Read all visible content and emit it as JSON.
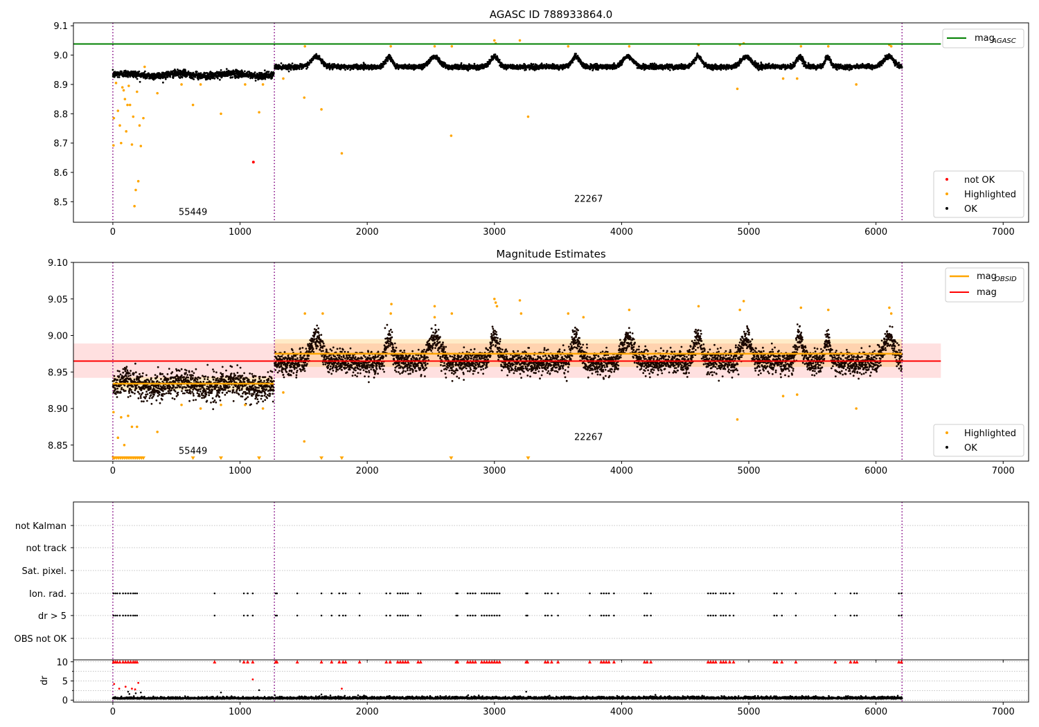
{
  "chart_data": [
    {
      "type": "scatter",
      "title": "AGASC ID 788933864.0",
      "xlabel": "",
      "ylabel": "",
      "xlim": [
        -310,
        7200
      ],
      "ylim": [
        8.43,
        9.11
      ],
      "x_ticks": [
        0,
        1000,
        2000,
        3000,
        4000,
        5000,
        6000,
        7000
      ],
      "y_ticks": [
        8.5,
        8.6,
        8.7,
        8.8,
        8.9,
        9.0,
        9.1
      ],
      "y_tick_labels": [
        "8.5",
        "8.6",
        "8.7",
        "8.8",
        "8.9",
        "9.0",
        "9.1"
      ],
      "grid": false,
      "obsid_boundaries": [
        0,
        1270,
        6205
      ],
      "obsid_labels": [
        {
          "text": "55449",
          "x": 630,
          "y": 8.455
        },
        {
          "text": "22267",
          "x": 3740,
          "y": 8.5
        }
      ],
      "lines": [
        {
          "name": "mag_AGASC",
          "label_main": "mag",
          "label_sub": "AGASC",
          "color": "#008000",
          "y": 9.038,
          "x_range": [
            -310,
            6510
          ]
        }
      ],
      "segments": [
        {
          "x0": 0,
          "x1": 1265,
          "base": 8.933,
          "noise": 0.006,
          "waves": [
            {
              "amp": 0.004,
              "period": 420
            }
          ]
        },
        {
          "x0": 1272,
          "x1": 6205,
          "base": 8.96,
          "noise": 0.004,
          "bumps": [
            [
              1600,
              40
            ],
            [
              2170,
              25
            ],
            [
              2530,
              40
            ],
            [
              3000,
              30
            ],
            [
              3640,
              30
            ],
            [
              4050,
              40
            ],
            [
              4600,
              30
            ],
            [
              4980,
              40
            ],
            [
              5400,
              25
            ],
            [
              5620,
              20
            ],
            [
              6100,
              40
            ]
          ],
          "bump_amp": 0.035
        }
      ],
      "series": [
        {
          "name": "not OK",
          "color": "#ff0000",
          "points": [
            [
              1105,
              8.635
            ]
          ]
        },
        {
          "name": "Highlighted",
          "color": "#ffa500",
          "points": [
            [
              5,
              8.692
            ],
            [
              8,
              8.785
            ],
            [
              25,
              8.905
            ],
            [
              40,
              8.81
            ],
            [
              55,
              8.76
            ],
            [
              65,
              8.7
            ],
            [
              75,
              8.89
            ],
            [
              85,
              8.88
            ],
            [
              95,
              8.85
            ],
            [
              105,
              8.74
            ],
            [
              115,
              8.83
            ],
            [
              125,
              8.895
            ],
            [
              135,
              8.83
            ],
            [
              150,
              8.695
            ],
            [
              160,
              8.79
            ],
            [
              170,
              8.485
            ],
            [
              180,
              8.54
            ],
            [
              190,
              8.875
            ],
            [
              200,
              8.57
            ],
            [
              210,
              8.76
            ],
            [
              220,
              8.69
            ],
            [
              240,
              8.785
            ],
            [
              250,
              8.96
            ],
            [
              350,
              8.87
            ],
            [
              540,
              8.9
            ],
            [
              630,
              8.83
            ],
            [
              690,
              8.9
            ],
            [
              850,
              8.8
            ],
            [
              1040,
              8.9
            ],
            [
              1150,
              8.805
            ],
            [
              1180,
              8.9
            ],
            [
              1340,
              8.92
            ],
            [
              1505,
              8.855
            ],
            [
              1510,
              9.03
            ],
            [
              1640,
              8.815
            ],
            [
              1800,
              8.665
            ],
            [
              2185,
              9.03
            ],
            [
              2530,
              9.03
            ],
            [
              2660,
              8.725
            ],
            [
              2665,
              9.03
            ],
            [
              3000,
              9.05
            ],
            [
              3010,
              9.04
            ],
            [
              3200,
              9.05
            ],
            [
              3265,
              8.79
            ],
            [
              3580,
              9.03
            ],
            [
              4060,
              9.03
            ],
            [
              4605,
              9.035
            ],
            [
              4910,
              8.885
            ],
            [
              4930,
              9.035
            ],
            [
              4960,
              9.04
            ],
            [
              5270,
              8.92
            ],
            [
              5380,
              8.92
            ],
            [
              5410,
              9.03
            ],
            [
              5625,
              9.03
            ],
            [
              5845,
              8.9
            ],
            [
              6105,
              9.035
            ],
            [
              6120,
              9.03
            ]
          ]
        },
        {
          "name": "OK",
          "color": "#000000",
          "points": []
        }
      ],
      "legends": [
        {
          "position": "upper right",
          "entries": [
            "mag_AGASC"
          ]
        },
        {
          "position": "lower right",
          "entries": [
            "not OK",
            "Highlighted",
            "OK"
          ]
        }
      ]
    },
    {
      "type": "scatter",
      "title": "Magnitude Estimates",
      "xlabel": "",
      "ylabel": "",
      "xlim": [
        -310,
        7200
      ],
      "ylim": [
        8.828,
        9.1
      ],
      "x_ticks": [
        0,
        1000,
        2000,
        3000,
        4000,
        5000,
        6000,
        7000
      ],
      "y_ticks": [
        8.85,
        8.9,
        8.95,
        9.0,
        9.05,
        9.1
      ],
      "y_tick_labels": [
        "8.85",
        "8.90",
        "8.95",
        "9.00",
        "9.05",
        "9.10"
      ],
      "grid": false,
      "obsid_boundaries": [
        0,
        1270,
        6205
      ],
      "obsid_labels": [
        {
          "text": "55449",
          "x": 630,
          "y": 8.838
        },
        {
          "text": "22267",
          "x": 3740,
          "y": 8.857
        }
      ],
      "lines": [
        {
          "name": "mag_OBSID",
          "label_main": "mag",
          "label_sub": "OBSID",
          "color": "#ffa500",
          "pieces": [
            {
              "x": [
                0,
                1265
              ],
              "y": 8.934,
              "band": [
                8.925,
                8.943
              ]
            },
            {
              "x": [
                1272,
                6205
              ],
              "y": 8.975,
              "band": [
                8.957,
                8.995
              ]
            }
          ]
        },
        {
          "name": "mag",
          "label_main": "mag",
          "color": "#ff0000",
          "y": 8.965,
          "band": [
            8.942,
            8.989
          ],
          "x_range": [
            -310,
            6510
          ]
        }
      ],
      "segments": [
        {
          "x0": 0,
          "x1": 1265,
          "base": 8.932,
          "noise": 0.009,
          "waves": [
            {
              "amp": 0.004,
              "period": 420
            }
          ]
        },
        {
          "x0": 1272,
          "x1": 6205,
          "base": 8.963,
          "noise": 0.008,
          "bumps": [
            [
              1600,
              40
            ],
            [
              2170,
              25
            ],
            [
              2530,
              40
            ],
            [
              3000,
              30
            ],
            [
              3640,
              30
            ],
            [
              4050,
              40
            ],
            [
              4600,
              30
            ],
            [
              4980,
              40
            ],
            [
              5400,
              25
            ],
            [
              5620,
              20
            ],
            [
              6100,
              40
            ]
          ],
          "bump_amp": 0.035
        }
      ],
      "series": [
        {
          "name": "Highlighted",
          "color": "#ffa500",
          "points": [
            [
              5,
              8.895
            ],
            [
              40,
              8.86
            ],
            [
              65,
              8.888
            ],
            [
              90,
              8.85
            ],
            [
              120,
              8.89
            ],
            [
              150,
              8.875
            ],
            [
              190,
              8.875
            ],
            [
              350,
              8.868
            ],
            [
              540,
              8.905
            ],
            [
              690,
              8.9
            ],
            [
              850,
              8.905
            ],
            [
              1040,
              8.905
            ],
            [
              1180,
              8.9
            ],
            [
              1340,
              8.922
            ],
            [
              1505,
              8.855
            ],
            [
              1510,
              9.03
            ],
            [
              1650,
              9.03
            ],
            [
              2185,
              9.03
            ],
            [
              2190,
              9.043
            ],
            [
              2530,
              9.04
            ],
            [
              2530,
              9.025
            ],
            [
              2665,
              9.03
            ],
            [
              3000,
              9.05
            ],
            [
              3010,
              9.045
            ],
            [
              3020,
              9.04
            ],
            [
              3200,
              9.048
            ],
            [
              3210,
              9.03
            ],
            [
              3580,
              9.03
            ],
            [
              3700,
              9.025
            ],
            [
              4060,
              9.035
            ],
            [
              4605,
              9.04
            ],
            [
              4910,
              8.885
            ],
            [
              4930,
              9.035
            ],
            [
              4960,
              9.047
            ],
            [
              5270,
              8.917
            ],
            [
              5380,
              8.919
            ],
            [
              5410,
              9.038
            ],
            [
              5625,
              9.035
            ],
            [
              5845,
              8.9
            ],
            [
              6105,
              9.038
            ],
            [
              6120,
              9.03
            ]
          ]
        },
        {
          "name": "OK",
          "color": "#000000",
          "points": []
        }
      ],
      "out_of_range_markers": {
        "color": "#ffa500",
        "y": 8.832,
        "x": [
          5,
          15,
          30,
          45,
          60,
          75,
          90,
          105,
          120,
          135,
          150,
          165,
          180,
          195,
          210,
          225,
          240,
          630,
          850,
          1150,
          1640,
          1800,
          2660,
          3265
        ]
      },
      "legends": [
        {
          "position": "upper right",
          "entries": [
            "mag_OBSID",
            "mag"
          ]
        },
        {
          "position": "lower right",
          "entries": [
            "Highlighted",
            "OK"
          ]
        }
      ]
    },
    {
      "type": "scatter",
      "title": "",
      "xlim": [
        -310,
        7200
      ],
      "categories": [
        "not Kalman",
        "not track",
        "Sat. pixel.",
        "Ion. rad.",
        "dr > 5",
        "OBS not OK"
      ],
      "obsid_boundaries": [
        0,
        1270,
        6205
      ],
      "flag_points": {
        "Ion. rad.": [
          5,
          20,
          35,
          55,
          80,
          100,
          120,
          140,
          160,
          175,
          190,
          800,
          1030,
          1060,
          1100,
          1280,
          1290,
          1450,
          1640,
          1720,
          1780,
          1810,
          1830,
          1940,
          2150,
          2180,
          2240,
          2260,
          2280,
          2300,
          2320,
          2400,
          2420,
          2700,
          2710,
          2790,
          2810,
          2830,
          2850,
          2900,
          2920,
          2940,
          2960,
          2980,
          3000,
          3020,
          3040,
          3250,
          3260,
          3400,
          3420,
          3450,
          3500,
          3750,
          3840,
          3860,
          3880,
          3900,
          3940,
          4180,
          4200,
          4230,
          4680,
          4700,
          4720,
          4740,
          4780,
          4800,
          4820,
          4850,
          4880,
          5200,
          5220,
          5260,
          5370,
          5680,
          5800,
          5830,
          5850,
          6180,
          6200
        ],
        "dr > 5": [
          5,
          20,
          35,
          55,
          80,
          100,
          120,
          140,
          160,
          175,
          190,
          800,
          1030,
          1060,
          1100,
          1280,
          1290,
          1450,
          1640,
          1720,
          1780,
          1810,
          1830,
          1940,
          2150,
          2180,
          2240,
          2260,
          2280,
          2300,
          2320,
          2400,
          2420,
          2700,
          2710,
          2790,
          2810,
          2830,
          2850,
          2900,
          2920,
          2940,
          2960,
          2980,
          3000,
          3020,
          3040,
          3250,
          3260,
          3400,
          3420,
          3450,
          3500,
          3750,
          3840,
          3860,
          3880,
          3900,
          3940,
          4180,
          4200,
          4230,
          4680,
          4700,
          4720,
          4740,
          4780,
          4800,
          4820,
          4850,
          4880,
          5200,
          5220,
          5260,
          5370,
          5680,
          5800,
          5830,
          5850,
          6180,
          6200
        ]
      },
      "grid": true
    },
    {
      "type": "scatter",
      "title": "",
      "xlabel": "",
      "ylabel": "dr",
      "xlim": [
        -310,
        7200
      ],
      "ylim": [
        -0.5,
        10.5
      ],
      "x_ticks": [
        0,
        1000,
        2000,
        3000,
        4000,
        5000,
        6000,
        7000
      ],
      "y_ticks": [
        0,
        5,
        10
      ],
      "y_minor_ticks": [
        2.5,
        7.5
      ],
      "grid": true,
      "obsid_boundaries": [
        0,
        1270,
        6205
      ],
      "clip_markers": {
        "color": "#ff0000",
        "y": 10,
        "x": [
          5,
          20,
          35,
          55,
          80,
          100,
          120,
          140,
          160,
          175,
          190,
          800,
          1030,
          1060,
          1100,
          1280,
          1290,
          1450,
          1640,
          1720,
          1780,
          1810,
          1830,
          1940,
          2150,
          2180,
          2240,
          2260,
          2280,
          2300,
          2320,
          2400,
          2420,
          2700,
          2710,
          2790,
          2810,
          2830,
          2850,
          2900,
          2920,
          2940,
          2960,
          2980,
          3000,
          3020,
          3040,
          3250,
          3260,
          3400,
          3420,
          3450,
          3500,
          3750,
          3840,
          3860,
          3880,
          3900,
          3940,
          4180,
          4200,
          4230,
          4680,
          4700,
          4720,
          4740,
          4780,
          4800,
          4820,
          4850,
          4880,
          5200,
          5220,
          5260,
          5370,
          5680,
          5800,
          5830,
          5850,
          6180,
          6200
        ]
      },
      "red_points": [
        [
          10,
          4.2
        ],
        [
          50,
          3.0
        ],
        [
          100,
          3.5
        ],
        [
          150,
          3.0
        ],
        [
          175,
          2.8
        ],
        [
          200,
          4.5
        ],
        [
          1100,
          5.4
        ],
        [
          1800,
          3.0
        ]
      ],
      "black_points": [
        [
          120,
          2.2
        ],
        [
          130,
          1.6
        ],
        [
          180,
          1.8
        ],
        [
          220,
          2.0
        ],
        [
          850,
          2.0
        ],
        [
          1150,
          2.6
        ],
        [
          1640,
          1.5
        ],
        [
          3250,
          2.2
        ]
      ],
      "segments": [
        {
          "x0": 0,
          "x1": 1265,
          "base": 0.45,
          "noise": 0.25
        },
        {
          "x0": 1272,
          "x1": 6205,
          "base": 0.45,
          "noise": 0.3
        }
      ]
    }
  ]
}
